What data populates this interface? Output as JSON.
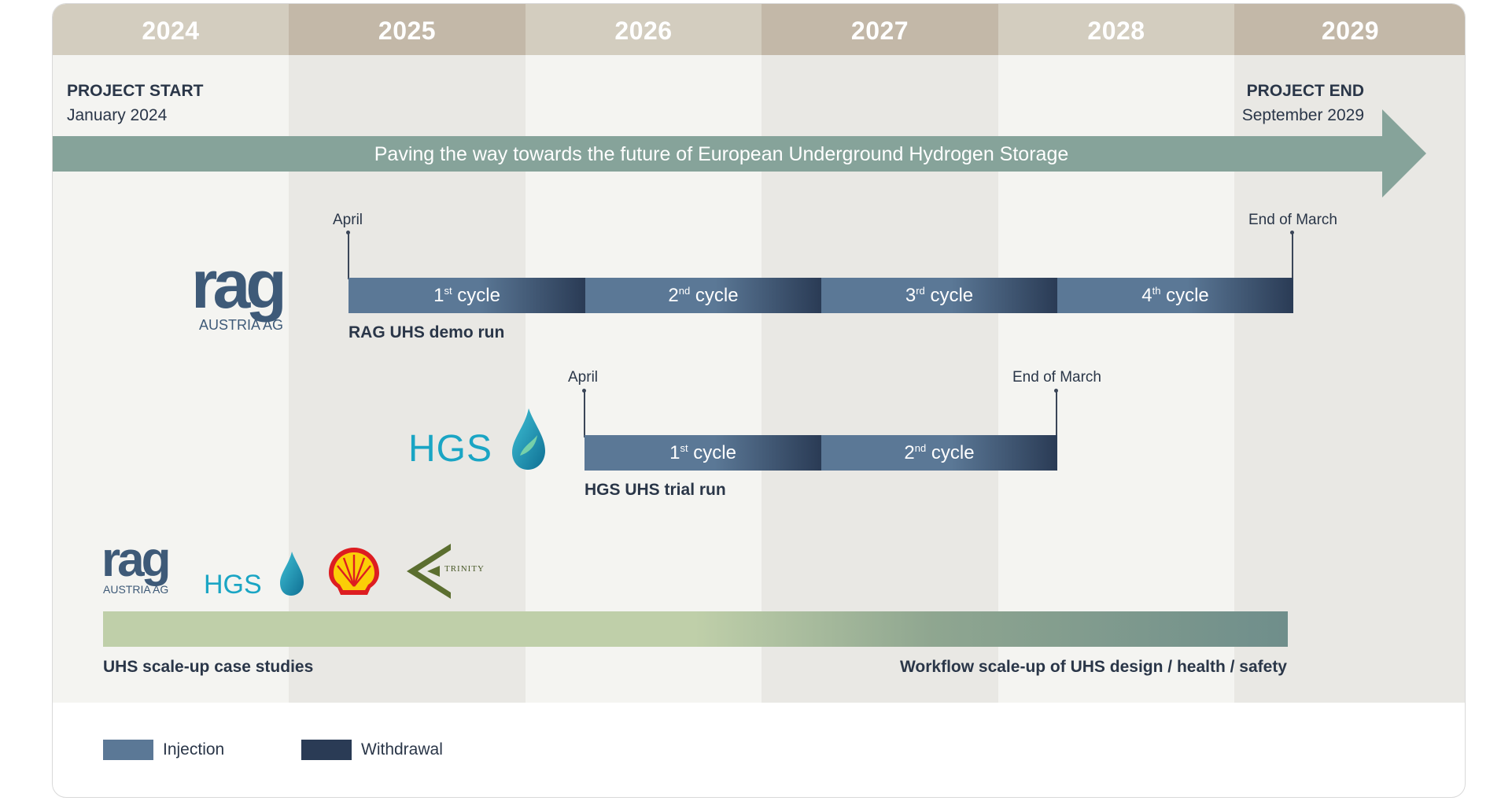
{
  "timeline": {
    "years": [
      "2024",
      "2025",
      "2026",
      "2027",
      "2028",
      "2029"
    ],
    "project_start": {
      "label": "PROJECT START",
      "date": "January 2024"
    },
    "project_end": {
      "label": "PROJECT END",
      "date": "September 2029"
    },
    "banner": "Paving the way towards the future of European Underground Hydrogen Storage"
  },
  "rag_run": {
    "start_marker": "April",
    "end_marker": "End of March",
    "title": "RAG UHS demo run",
    "cycles": [
      {
        "num": "1",
        "sup": "st",
        "word": "cycle"
      },
      {
        "num": "2",
        "sup": "nd",
        "word": "cycle"
      },
      {
        "num": "3",
        "sup": "rd",
        "word": "cycle"
      },
      {
        "num": "4",
        "sup": "th",
        "word": "cycle"
      }
    ]
  },
  "hgs_run": {
    "start_marker": "April",
    "end_marker": "End of March",
    "title": "HGS UHS trial run",
    "cycles": [
      {
        "num": "1",
        "sup": "st",
        "word": "cycle"
      },
      {
        "num": "2",
        "sup": "nd",
        "word": "cycle"
      }
    ]
  },
  "logos": {
    "rag_text": "rag",
    "rag_sub": "AUSTRIA AG",
    "hgs_text": "HGS",
    "trinity_text": "TRINITY"
  },
  "case_studies": {
    "left_label": "UHS scale-up case studies",
    "right_label": "Workflow scale-up of UHS design / health / safety"
  },
  "legend": {
    "injection": "Injection",
    "withdrawal": "Withdrawal"
  },
  "colors": {
    "injection": "#5b7896",
    "withdrawal": "#2a3b55",
    "banner": "#86a39a",
    "green_start": "#bfcfa9",
    "green_end": "#6f8e8b"
  }
}
